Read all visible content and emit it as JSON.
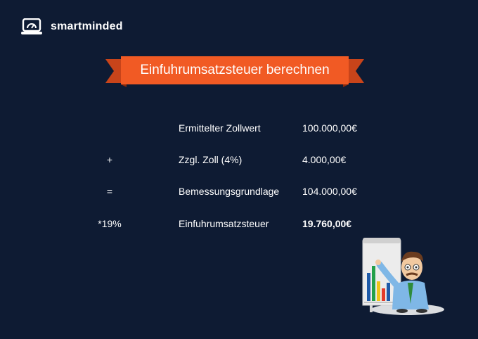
{
  "brand": {
    "name": "smartminded"
  },
  "banner": {
    "title": "Einfuhrumsatzsteuer berechnen"
  },
  "rows": [
    {
      "operator": "",
      "label": "Ermittelter Zollwert",
      "value": "100.000,00€"
    },
    {
      "operator": "+",
      "label": "Zzgl. Zoll (4%)",
      "value": "4.000,00€"
    },
    {
      "operator": "=",
      "label": "Bemessungsgrundlage",
      "value": "104.000,00€"
    },
    {
      "operator": "*19%",
      "label": "Einfuhrumsatzsteuer",
      "value": "19.760,00€"
    }
  ],
  "colors": {
    "background": "#0e1b33",
    "banner": "#f15a24",
    "banner_dark": "#c8441a"
  }
}
